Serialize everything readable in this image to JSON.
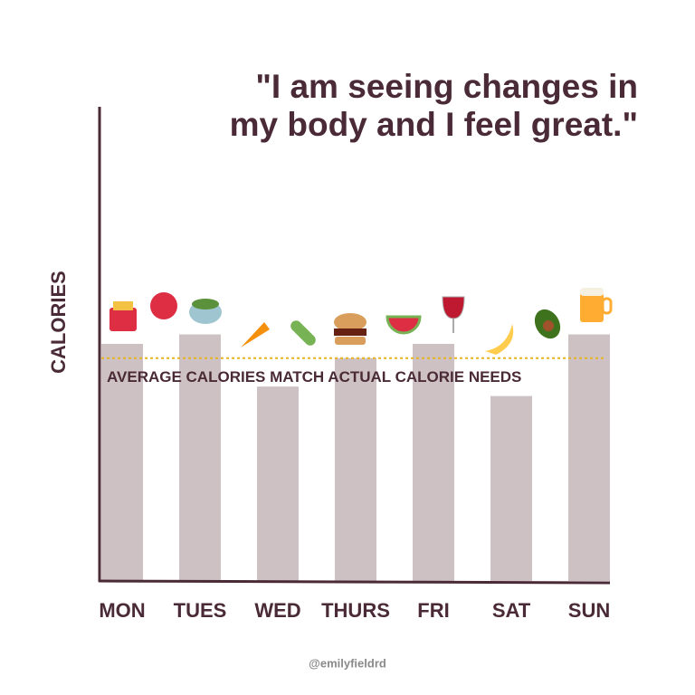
{
  "chart_data": {
    "type": "bar",
    "title": [
      "\"I am seeing changes in",
      "my body and I feel great.\""
    ],
    "y_label": "CALORIES",
    "categories": [
      "MON",
      "TUES",
      "WED",
      "THURS",
      "FRI",
      "SAT",
      "SUN"
    ],
    "values": [
      50,
      52,
      41,
      47,
      50,
      39,
      52
    ],
    "color": "#cdc1c3",
    "ylim": [
      0,
      100
    ],
    "reference_line": {
      "value": 47,
      "color": "#e6b422",
      "label": "AVERAGE CALORIES MATCH ACTUAL CALORIE NEEDS"
    },
    "credit": "@emilyfieldrd"
  }
}
